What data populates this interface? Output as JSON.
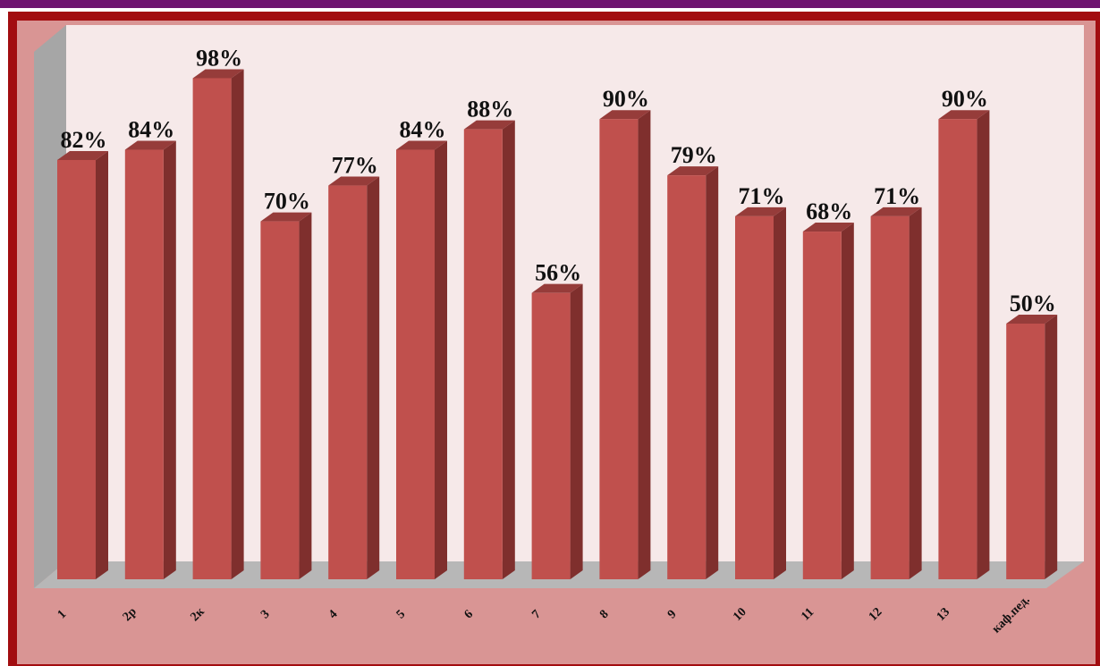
{
  "chart_data": {
    "type": "bar",
    "categories": [
      "1",
      "2р",
      "2к",
      "3",
      "4",
      "5",
      "6",
      "7",
      "8",
      "9",
      "10",
      "11",
      "12",
      "13",
      "каф.пед."
    ],
    "values": [
      82,
      84,
      98,
      70,
      77,
      84,
      88,
      56,
      90,
      79,
      71,
      68,
      71,
      90,
      50
    ],
    "data_labels": [
      "82%",
      "84%",
      "98%",
      "70%",
      "77%",
      "84%",
      "88%",
      "56%",
      "90%",
      "79%",
      "71%",
      "68%",
      "71%",
      "90%",
      "50%"
    ],
    "title": "",
    "xlabel": "",
    "ylabel": "",
    "ylim": [
      0,
      100
    ],
    "grid": false,
    "legend": "none",
    "style": "3d-column"
  },
  "colors": {
    "bar_front": "#c0504d",
    "bar_side": "#7f2f2d",
    "bar_top": "#963c3a",
    "plot_back_wall": "#f6e9e9",
    "left_wall": "#a6a6a6",
    "floor": "#b7b7b7",
    "frame_border": "#a20d10",
    "frame_fill": "#d99594",
    "top_stripe": "#6e1470"
  }
}
